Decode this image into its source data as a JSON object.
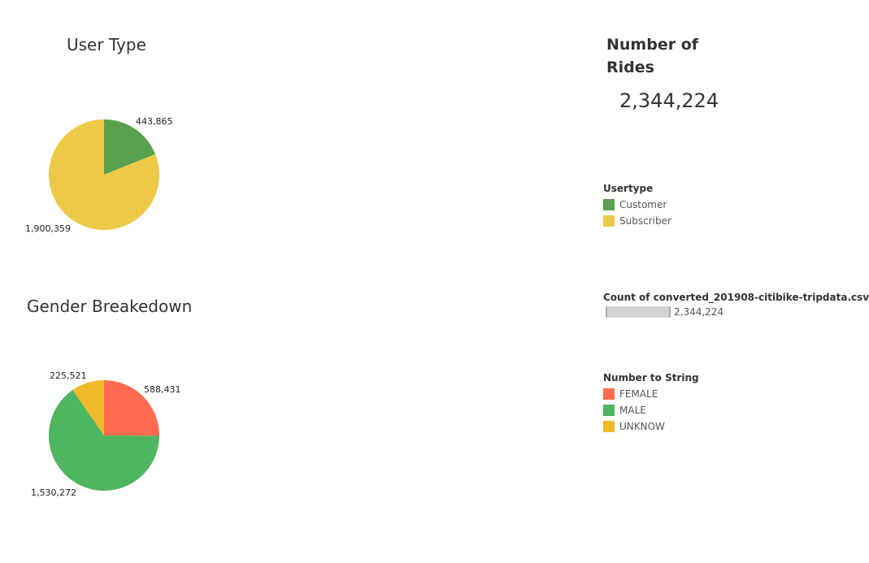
{
  "colors": {
    "customer": "#59a14f",
    "subscriber": "#edc948",
    "female": "#ff6b50",
    "male": "#50b560",
    "unknow": "#f0b92a"
  },
  "kpi": {
    "title": "Number of Rides",
    "value": "2,344,224"
  },
  "legend_usertype": {
    "title": "Usertype",
    "items": [
      {
        "label": "Customer",
        "color": "#59a14f"
      },
      {
        "label": "Subscriber",
        "color": "#edc948"
      }
    ]
  },
  "legend_size": {
    "title": "Count of converted_201908-citibike-tripdata.csv",
    "value": "2,344,224"
  },
  "legend_gender": {
    "title": "Number to String",
    "items": [
      {
        "label": "FEMALE",
        "color": "#ff6b50"
      },
      {
        "label": "MALE",
        "color": "#50b560"
      },
      {
        "label": "UNKNOW",
        "color": "#f0b92a"
      }
    ]
  },
  "chart_data": [
    {
      "type": "pie",
      "title": "User Type",
      "categories": [
        "Customer",
        "Subscriber"
      ],
      "values": [
        443865,
        1900359
      ],
      "labels": [
        "443,865",
        "1,900,359"
      ],
      "colors": [
        "#59a14f",
        "#edc948"
      ]
    },
    {
      "type": "pie",
      "title": "Gender Breakedown",
      "categories": [
        "FEMALE",
        "MALE",
        "UNKNOW"
      ],
      "values": [
        588431,
        1530272,
        225521
      ],
      "labels": [
        "588,431",
        "1,530,272",
        "225,521"
      ],
      "colors": [
        "#ff6b50",
        "#50b560",
        "#f0b92a"
      ]
    }
  ]
}
